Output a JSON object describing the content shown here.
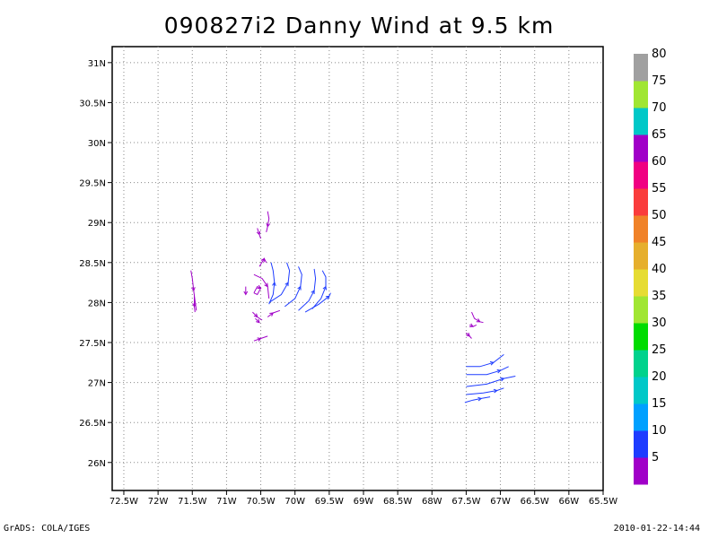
{
  "title": "090827i2 Danny Wind at 9.5 km",
  "footer": {
    "left": "GrADS: COLA/IGES",
    "right": "2010-01-22-14:44"
  },
  "map": {
    "lon_range": [
      -72.67,
      -65.5
    ],
    "lat_range": [
      25.65,
      31.2
    ],
    "grid": "dotted",
    "x_ticks": [
      {
        "lon": -72.5,
        "label": "72.5W"
      },
      {
        "lon": -72,
        "label": "72W"
      },
      {
        "lon": -71.5,
        "label": "71.5W"
      },
      {
        "lon": -71,
        "label": "71W"
      },
      {
        "lon": -70.5,
        "label": "70.5W"
      },
      {
        "lon": -70,
        "label": "70W"
      },
      {
        "lon": -69.5,
        "label": "69.5W"
      },
      {
        "lon": -69,
        "label": "69W"
      },
      {
        "lon": -68.5,
        "label": "68.5W"
      },
      {
        "lon": -68,
        "label": "68W"
      },
      {
        "lon": -67.5,
        "label": "67.5W"
      },
      {
        "lon": -67,
        "label": "67W"
      },
      {
        "lon": -66.5,
        "label": "66.5W"
      },
      {
        "lon": -66,
        "label": "66W"
      },
      {
        "lon": -65.5,
        "label": "65.5W"
      }
    ],
    "y_ticks": [
      {
        "lat": 26,
        "label": "26N"
      },
      {
        "lat": 26.5,
        "label": "26.5N"
      },
      {
        "lat": 27,
        "label": "27N"
      },
      {
        "lat": 27.5,
        "label": "27.5N"
      },
      {
        "lat": 28,
        "label": "28N"
      },
      {
        "lat": 28.5,
        "label": "28.5N"
      },
      {
        "lat": 29,
        "label": "29N"
      },
      {
        "lat": 29.5,
        "label": "29.5N"
      },
      {
        "lat": 30,
        "label": "30N"
      },
      {
        "lat": 30.5,
        "label": "30.5N"
      },
      {
        "lat": 31,
        "label": "31N"
      }
    ]
  },
  "colorbar": {
    "labels": [
      "5",
      "10",
      "15",
      "20",
      "25",
      "30",
      "35",
      "40",
      "45",
      "50",
      "55",
      "60",
      "65",
      "70",
      "75",
      "80"
    ],
    "colors": [
      "#a000c8",
      "#1e3cff",
      "#00a0ff",
      "#00c8c8",
      "#00d28c",
      "#00dc00",
      "#a0e632",
      "#e6dc32",
      "#e6af2d",
      "#f08228",
      "#fa3c3c",
      "#f00082",
      "#a000c8",
      "#00c8c8",
      "#a0e632",
      "#a0a0a0"
    ]
  },
  "streamlines": [
    {
      "color": "#a000c8",
      "pts": [
        [
          -71.52,
          28.4
        ],
        [
          -71.5,
          28.3
        ],
        [
          -71.48,
          28.15
        ],
        [
          -71.46,
          28.02
        ],
        [
          -71.44,
          27.9
        ]
      ]
    },
    {
      "color": "#a000c8",
      "pts": [
        [
          -71.47,
          28.08
        ],
        [
          -71.47,
          27.95
        ],
        [
          -71.46,
          27.88
        ]
      ]
    },
    {
      "color": "#a000c8",
      "pts": [
        [
          -70.4,
          29.14
        ],
        [
          -70.38,
          29.05
        ],
        [
          -70.4,
          28.95
        ],
        [
          -70.42,
          28.88
        ]
      ]
    },
    {
      "color": "#a000c8",
      "pts": [
        [
          -70.55,
          28.93
        ],
        [
          -70.52,
          28.85
        ],
        [
          -70.5,
          28.8
        ]
      ]
    },
    {
      "color": "#a000c8",
      "pts": [
        [
          -70.52,
          28.45
        ],
        [
          -70.45,
          28.55
        ],
        [
          -70.42,
          28.5
        ]
      ]
    },
    {
      "color": "#a000c8",
      "pts": [
        [
          -70.72,
          28.2
        ],
        [
          -70.72,
          28.1
        ]
      ]
    },
    {
      "color": "#a000c8",
      "pts": [
        [
          -70.6,
          28.35
        ],
        [
          -70.48,
          28.3
        ],
        [
          -70.4,
          28.2
        ],
        [
          -70.38,
          28.05
        ]
      ]
    },
    {
      "color": "#a000c8",
      "pts": [
        [
          -70.6,
          28.12
        ],
        [
          -70.55,
          28.2
        ],
        [
          -70.5,
          28.18
        ],
        [
          -70.55,
          28.1
        ],
        [
          -70.6,
          28.12
        ]
      ]
    },
    {
      "color": "#a000c8",
      "pts": [
        [
          -70.62,
          27.88
        ],
        [
          -70.55,
          27.82
        ],
        [
          -70.48,
          27.78
        ]
      ]
    },
    {
      "color": "#a000c8",
      "pts": [
        [
          -70.58,
          27.8
        ],
        [
          -70.52,
          27.75
        ]
      ]
    },
    {
      "color": "#a000c8",
      "pts": [
        [
          -70.4,
          27.82
        ],
        [
          -70.32,
          27.87
        ],
        [
          -70.22,
          27.9
        ]
      ]
    },
    {
      "color": "#a000c8",
      "pts": [
        [
          -70.6,
          27.52
        ],
        [
          -70.5,
          27.55
        ],
        [
          -70.4,
          27.58
        ]
      ]
    },
    {
      "color": "#1e3cff",
      "pts": [
        [
          -70.38,
          27.98
        ],
        [
          -70.32,
          28.1
        ],
        [
          -70.3,
          28.25
        ],
        [
          -70.32,
          28.4
        ],
        [
          -70.35,
          28.5
        ]
      ]
    },
    {
      "color": "#1e3cff",
      "pts": [
        [
          -70.38,
          28.0
        ],
        [
          -70.2,
          28.1
        ],
        [
          -70.1,
          28.25
        ],
        [
          -70.08,
          28.4
        ],
        [
          -70.12,
          28.5
        ]
      ]
    },
    {
      "color": "#1e3cff",
      "pts": [
        [
          -70.15,
          27.95
        ],
        [
          -70.0,
          28.05
        ],
        [
          -69.92,
          28.2
        ],
        [
          -69.9,
          28.35
        ],
        [
          -69.95,
          28.45
        ]
      ]
    },
    {
      "color": "#1e3cff",
      "pts": [
        [
          -69.95,
          27.9
        ],
        [
          -69.8,
          28.02
        ],
        [
          -69.72,
          28.15
        ],
        [
          -69.7,
          28.3
        ],
        [
          -69.72,
          28.42
        ]
      ]
    },
    {
      "color": "#1e3cff",
      "pts": [
        [
          -69.75,
          27.92
        ],
        [
          -69.62,
          28.05
        ],
        [
          -69.55,
          28.2
        ],
        [
          -69.55,
          28.32
        ],
        [
          -69.6,
          28.4
        ]
      ]
    },
    {
      "color": "#1e3cff",
      "pts": [
        [
          -69.85,
          27.88
        ],
        [
          -69.65,
          27.98
        ],
        [
          -69.5,
          28.08
        ],
        [
          -69.48,
          28.12
        ]
      ]
    },
    {
      "color": "#a000c8",
      "pts": [
        [
          -67.42,
          27.88
        ],
        [
          -67.38,
          27.8
        ],
        [
          -67.3,
          27.76
        ],
        [
          -67.25,
          27.75
        ]
      ]
    },
    {
      "color": "#a000c8",
      "pts": [
        [
          -67.45,
          27.72
        ],
        [
          -67.4,
          27.7
        ],
        [
          -67.35,
          27.72
        ]
      ]
    },
    {
      "color": "#a000c8",
      "pts": [
        [
          -67.5,
          27.62
        ],
        [
          -67.45,
          27.58
        ],
        [
          -67.42,
          27.55
        ]
      ]
    },
    {
      "color": "#1e3cff",
      "pts": [
        [
          -67.5,
          27.2
        ],
        [
          -67.3,
          27.2
        ],
        [
          -67.1,
          27.25
        ],
        [
          -66.95,
          27.35
        ]
      ]
    },
    {
      "color": "#1e3cff",
      "pts": [
        [
          -67.5,
          27.1
        ],
        [
          -67.2,
          27.1
        ],
        [
          -67.0,
          27.15
        ],
        [
          -66.88,
          27.2
        ]
      ]
    },
    {
      "color": "#1e3cff",
      "pts": [
        [
          -67.5,
          26.95
        ],
        [
          -67.2,
          26.98
        ],
        [
          -66.95,
          27.05
        ],
        [
          -66.78,
          27.08
        ]
      ]
    },
    {
      "color": "#1e3cff",
      "pts": [
        [
          -67.5,
          26.85
        ],
        [
          -67.25,
          26.87
        ],
        [
          -67.05,
          26.9
        ],
        [
          -66.95,
          26.93
        ]
      ]
    },
    {
      "color": "#1e3cff",
      "pts": [
        [
          -67.52,
          26.75
        ],
        [
          -67.4,
          26.78
        ],
        [
          -67.28,
          26.8
        ],
        [
          -67.15,
          26.82
        ]
      ]
    }
  ]
}
